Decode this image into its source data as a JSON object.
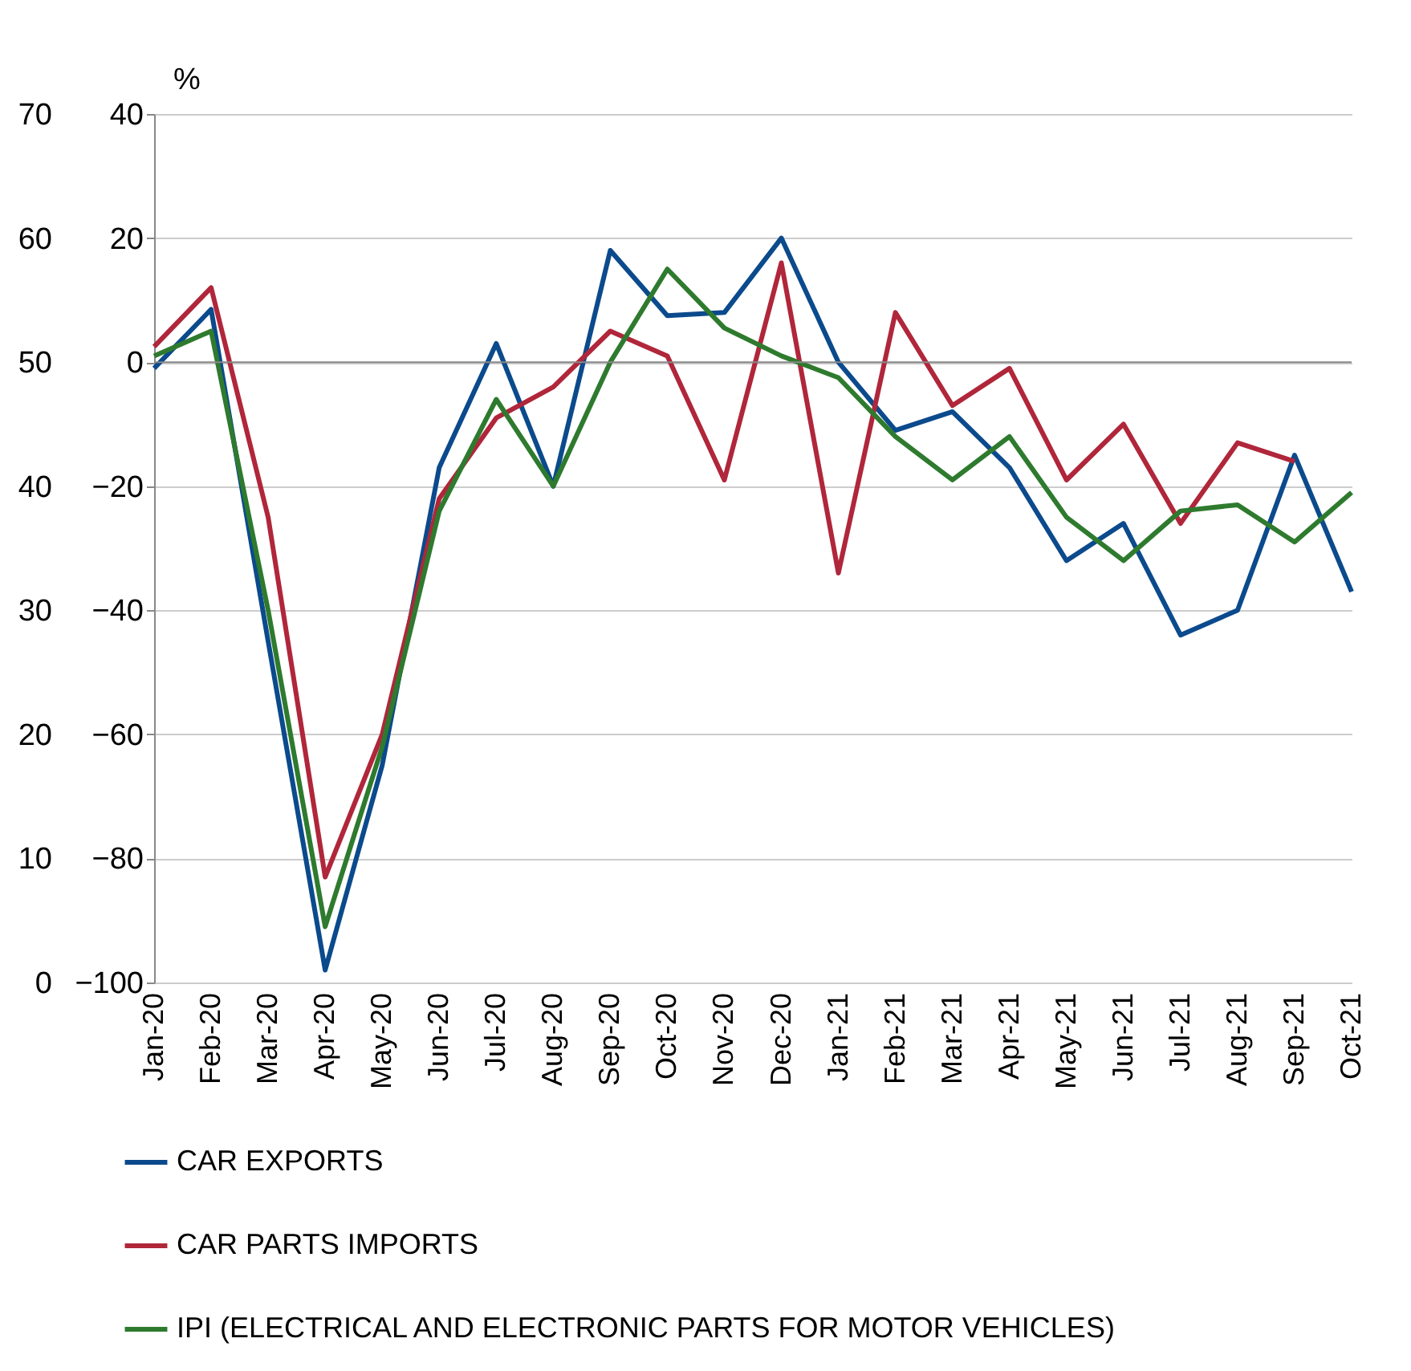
{
  "chart_data": {
    "type": "line",
    "ylabel": "%",
    "categories": [
      "Jan-20",
      "Feb-20",
      "Mar-20",
      "Apr-20",
      "May-20",
      "Jun-20",
      "Jul-20",
      "Aug-20",
      "Sep-20",
      "Oct-20",
      "Nov-20",
      "Dec-20",
      "Jan-21",
      "Feb-21",
      "Mar-21",
      "Apr-21",
      "May-21",
      "Jun-21",
      "Jul-21",
      "Aug-21",
      "Sep-21",
      "Oct-21"
    ],
    "series": [
      {
        "name": "CAR EXPORTS",
        "color": "#0b4a8c",
        "values": [
          -1,
          8.5,
          -45,
          -98,
          -65,
          -17,
          3,
          -20,
          18,
          7.5,
          8,
          20,
          0,
          -11,
          -8,
          -17,
          -32,
          -26,
          -44,
          -40,
          -15,
          -37
        ]
      },
      {
        "name": "CAR PARTS IMPORTS",
        "color": "#b0263a",
        "values": [
          2.5,
          12,
          -25,
          -83,
          -60,
          -22,
          -9,
          -4,
          5,
          1,
          -19,
          16,
          -34,
          8,
          -7,
          -1,
          -19,
          -10,
          -26,
          -13,
          -16,
          null
        ]
      },
      {
        "name": "IPI (ELECTRICAL AND ELECTRONIC PARTS FOR MOTOR VEHICLES)",
        "color": "#2e7a2e",
        "values": [
          1,
          5,
          -40,
          -91,
          -62,
          -24,
          -6,
          -20,
          0,
          15,
          5.5,
          1,
          -2.5,
          -12,
          -19,
          -12,
          -25,
          -32,
          -24,
          -23,
          -29,
          -21
        ]
      }
    ],
    "ylim": [
      -100,
      40
    ],
    "yticks": [
      -100,
      -80,
      -60,
      -40,
      -20,
      0,
      20,
      40
    ],
    "y2lim": [
      0,
      70
    ],
    "y2ticks": [
      0,
      10,
      20,
      30,
      40,
      50,
      60,
      70
    ],
    "ref_lines": [
      {
        "axis": "y",
        "value": 0
      }
    ],
    "grid": "y",
    "legend": "bottom"
  }
}
